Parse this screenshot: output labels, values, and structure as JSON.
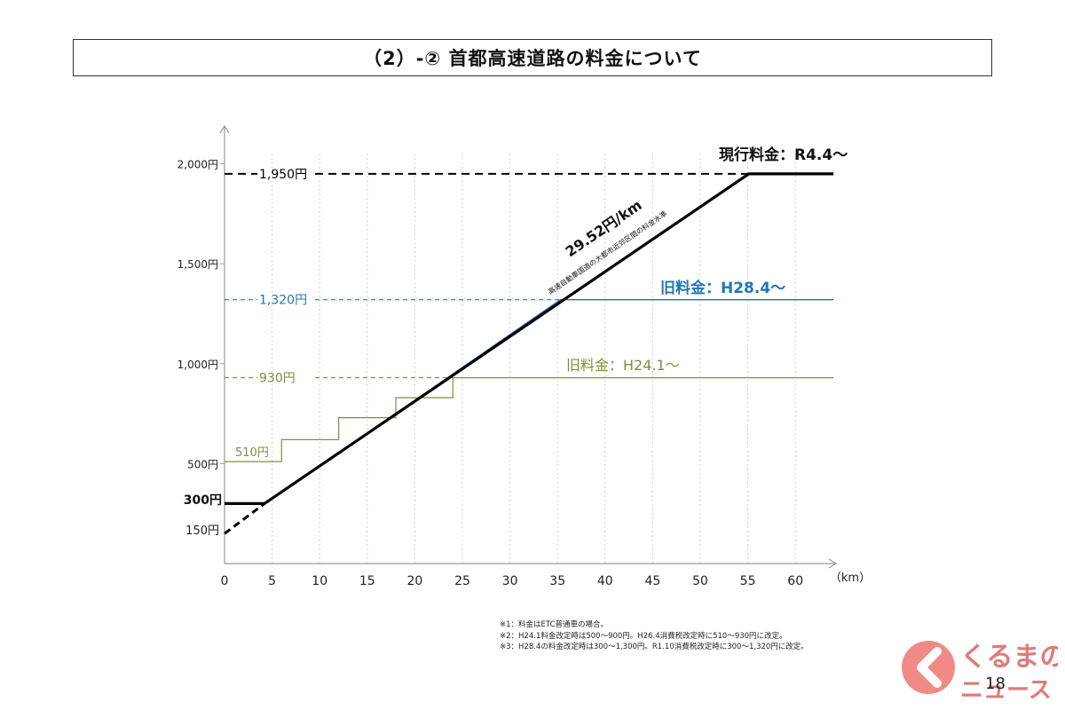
{
  "header": {
    "title": "（2）-② 首都高速道路の料金について"
  },
  "chart_data": {
    "type": "line",
    "title": "",
    "xlabel": "（km）",
    "ylabel": "",
    "xlim": [
      0,
      65
    ],
    "ylim": [
      0,
      2200
    ],
    "x_ticks": [
      0,
      5,
      10,
      15,
      20,
      25,
      30,
      35,
      40,
      45,
      50,
      55,
      60
    ],
    "y_ticks": [
      {
        "value": 500,
        "label": "500円"
      },
      {
        "value": 1000,
        "label": "1,000円"
      },
      {
        "value": 1500,
        "label": "1,500円"
      },
      {
        "value": 2000,
        "label": "2,000円"
      }
    ],
    "series": [
      {
        "name": "現行料金：R4.4～",
        "color": "#000000",
        "points": [
          [
            0,
            300
          ],
          [
            4.2,
            300
          ],
          [
            55.1,
            1950
          ],
          [
            64,
            1950
          ]
        ]
      },
      {
        "name": "旧料金：H28.4～",
        "color": "#1f77b4",
        "points": [
          [
            0,
            300
          ],
          [
            4.3,
            300
          ],
          [
            35.3,
            1320
          ],
          [
            64,
            1320
          ]
        ]
      },
      {
        "name": "旧料金：H24.1～",
        "color": "#77923c",
        "step": true,
        "points": [
          [
            0,
            510
          ],
          [
            6,
            510
          ],
          [
            6,
            620
          ],
          [
            12,
            620
          ],
          [
            12,
            730
          ],
          [
            18,
            730
          ],
          [
            18,
            830
          ],
          [
            24,
            830
          ],
          [
            24,
            930
          ],
          [
            64,
            930
          ]
        ]
      }
    ],
    "extension_line": {
      "from": [
        0,
        150
      ],
      "to": [
        4.2,
        300
      ]
    },
    "reference_lines": [
      {
        "value": 1950,
        "label": "1,950円",
        "color": "#000000"
      },
      {
        "value": 1320,
        "label": "1,320円",
        "color": "#1f77b4"
      },
      {
        "value": 930,
        "label": "930円",
        "color": "#77923c"
      }
    ],
    "annotations": {
      "current": "現行料金：R4.4～",
      "old_h28": "旧料金：H28.4～",
      "old_h24": "旧料金：H24.1～",
      "rate": "29.52円/km",
      "rate_note": "高速自動車国道の大都市近郊区間の料金水準",
      "label_300": "300円",
      "label_150": "150円",
      "label_510": "510円"
    }
  },
  "notes": [
    "※1：料金はETC普通車の場合。",
    "※2：H24.1料金改定時は500～900円。H26.4消費税改定時に510～930円に改定。",
    "※3：H28.4の料金改定時は300～1,300円。R1.10消費税改定時に300～1,320円に改定。"
  ],
  "logo": {
    "line1": "くるまの",
    "line2": "ニュース"
  },
  "page_number": "18"
}
